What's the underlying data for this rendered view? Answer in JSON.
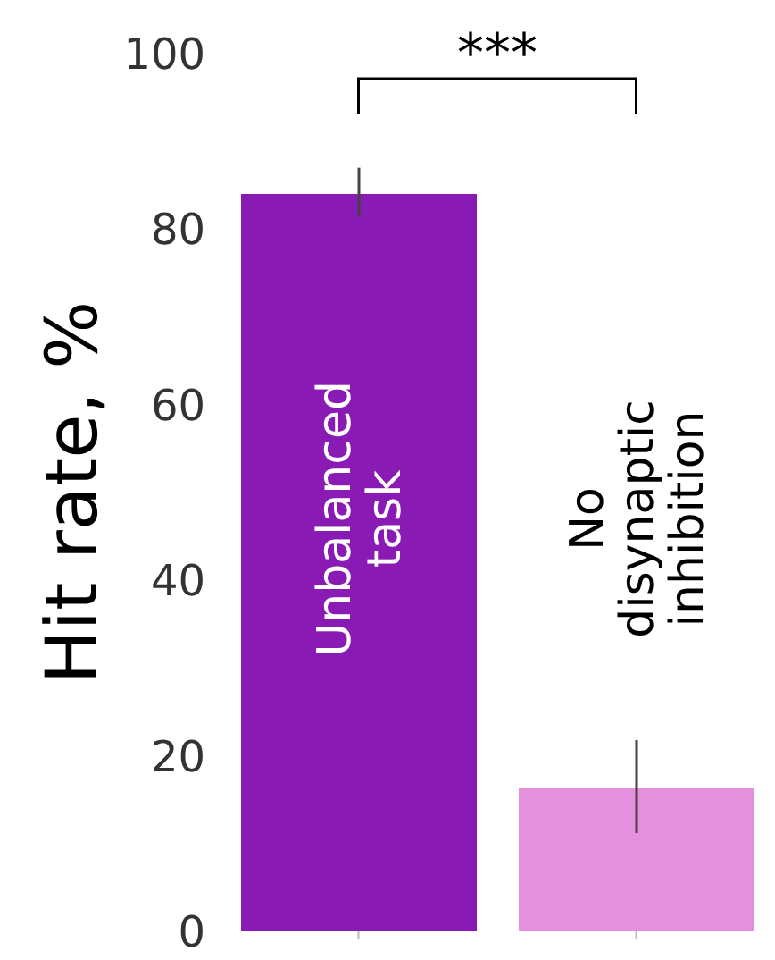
{
  "chart_data": {
    "type": "bar",
    "ylabel": "Hit rate, %",
    "categories": [
      "Unbalanced task",
      "No disynaptic inhibition"
    ],
    "values": [
      84,
      16.3
    ],
    "colors": [
      "#8a1ab4",
      "#e590dc"
    ],
    "errors": [
      [
        81.4,
        87
      ],
      [
        11.2,
        21.8
      ]
    ],
    "ylim": [
      0,
      100
    ],
    "yticks": [
      0,
      20,
      40,
      60,
      80,
      100
    ],
    "annotations": [
      {
        "text": "***"
      }
    ]
  }
}
